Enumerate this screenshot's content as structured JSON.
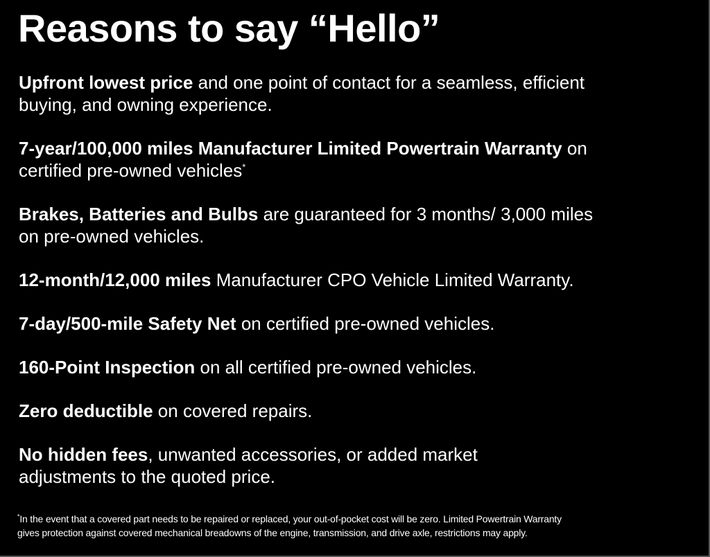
{
  "title": "Reasons to say “Hello”",
  "items": [
    {
      "bold": "Upfront lowest price",
      "line1": " and one point of contact for a seamless, efficient",
      "line2": "buying, and owning experience."
    },
    {
      "bold": "7-year/100,000 miles Manufacturer Limited Powertrain Warranty",
      "line1": " on",
      "line2": "certified pre-owned vehicles",
      "sup": "*"
    },
    {
      "bold": "Brakes, Batteries and Bulbs",
      "line1": " are guaranteed for 3 months/ 3,000 miles",
      "line2": "on pre-owned vehicles."
    },
    {
      "bold": "12-month/12,000 miles",
      "line1": " Manufacturer CPO Vehicle Limited Warranty."
    },
    {
      "bold": "7-day/500-mile Safety Net",
      "line1": " on certified pre-owned vehicles."
    },
    {
      "bold": "160-Point Inspection",
      "line1": " on all certified pre-owned vehicles."
    },
    {
      "bold": "Zero deductible",
      "line1": " on covered repairs."
    },
    {
      "bold": "No hidden fees",
      "line1": ", unwanted accessories, or added market",
      "line2": "adjustments to the quoted price."
    }
  ],
  "footnote": {
    "mark": "*",
    "line1": "In the event that a covered part needs to be repaired or replaced, your out-of-pocket cost will be zero. Limited Powertrain Warranty",
    "line2": "gives protection against covered mechanical breadowns of the engine, transmission, and drive axle, restrictions may apply."
  }
}
